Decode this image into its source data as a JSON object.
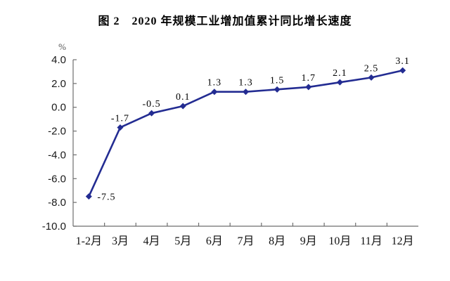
{
  "title": "图 2　2020 年规模工业增加值累计同比增长速度",
  "chart_data": {
    "type": "line",
    "title": "图 2　2020 年规模工业增加值累计同比增长速度",
    "xlabel": "",
    "ylabel": "%",
    "categories": [
      "1-2月",
      "3月",
      "4月",
      "5月",
      "6月",
      "7月",
      "8月",
      "9月",
      "10月",
      "11月",
      "12月"
    ],
    "series": [
      {
        "name": "规模工业增加值累计同比增长速度",
        "values": [
          -7.5,
          -1.7,
          -0.5,
          0.1,
          1.3,
          1.3,
          1.5,
          1.7,
          2.1,
          2.5,
          3.1
        ]
      }
    ],
    "data_labels": [
      "-7.5",
      "-1.7",
      "-0.5",
      "0.1",
      "1.3",
      "1.3",
      "1.5",
      "1.7",
      "2.1",
      "2.5",
      "3.1"
    ],
    "ytick_labels": [
      "4.0",
      "2.0",
      "0.0",
      "-2.0",
      "-4.0",
      "-6.0",
      "-8.0",
      "-10.0"
    ],
    "ytick_values": [
      4,
      2,
      0,
      -2,
      -4,
      -6,
      -8,
      -10
    ],
    "ylim": [
      -10,
      4
    ],
    "grid": false,
    "legend_position": "none",
    "line_color": "#232C92",
    "axis_color": "#6e6e6e",
    "label_color": "#000000",
    "background_color": "#ffffff"
  }
}
